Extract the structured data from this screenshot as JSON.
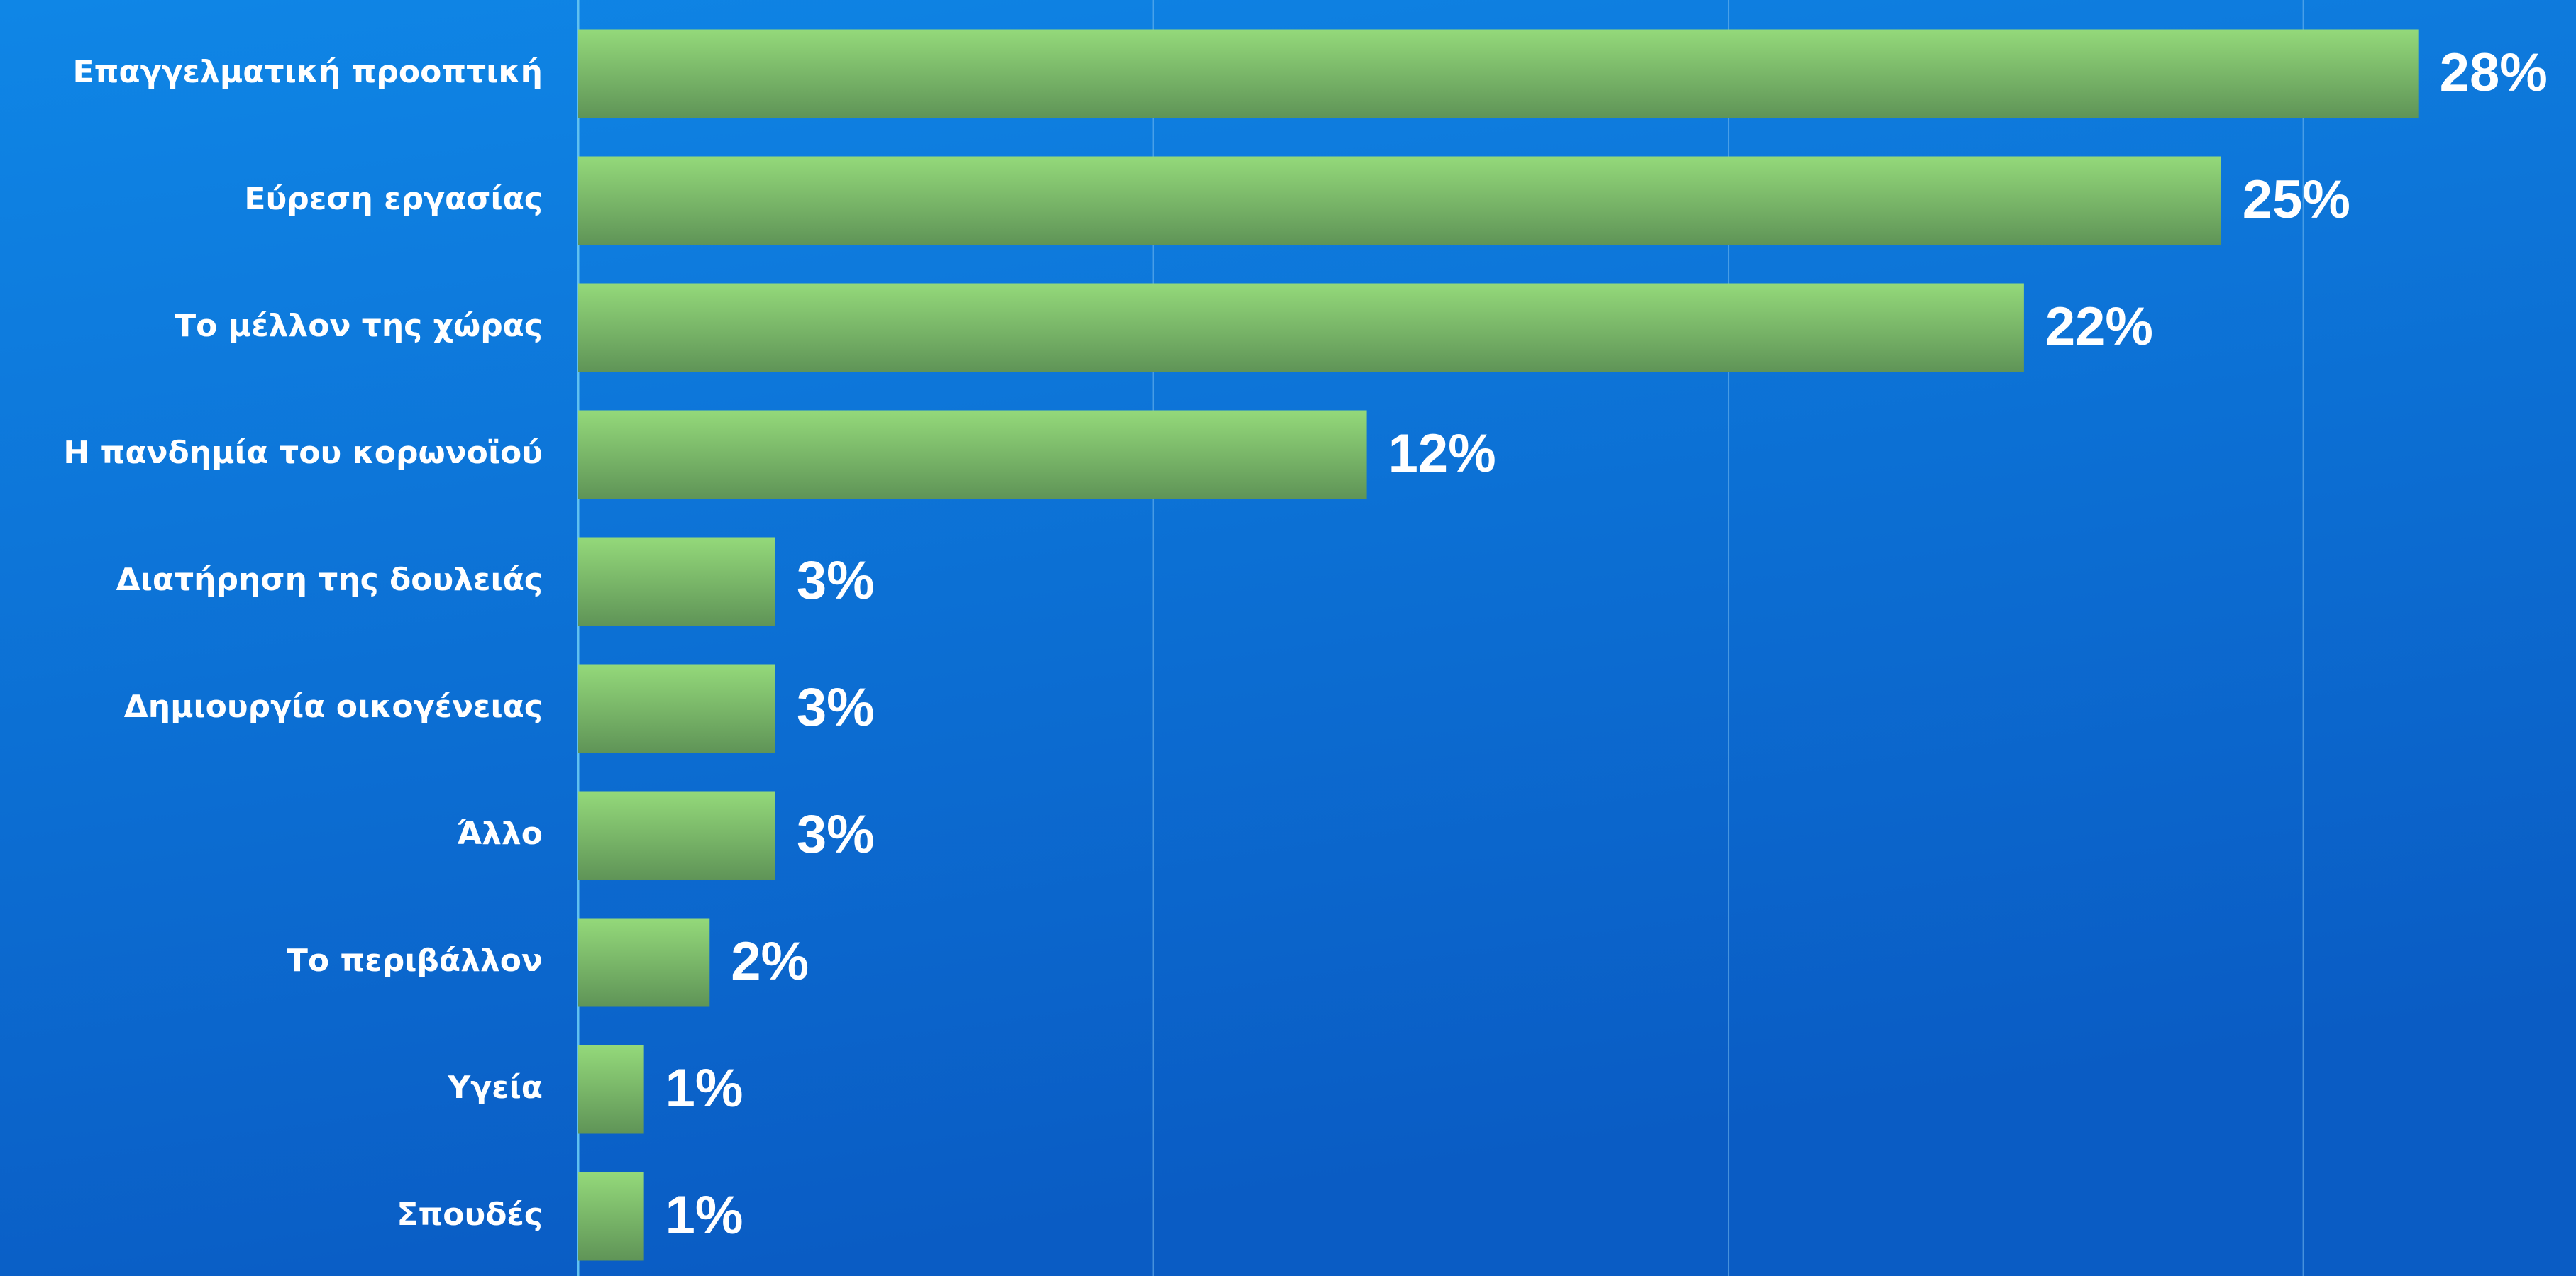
{
  "chart_data": {
    "type": "hbar",
    "categories": [
      "Επαγγελματική προοπτική",
      "Εύρεση εργασίας",
      "Το μέλλον της χώρας",
      "Η πανδημία του κορωνοϊού",
      "Διατήρηση της δουλειάς",
      "Δημιουργία οικογένειας",
      "Άλλο",
      "Το περιβάλλον",
      "Υγεία",
      "Σπουδές"
    ],
    "values": [
      28,
      25,
      22,
      12,
      3,
      3,
      3,
      2,
      1,
      1
    ],
    "value_labels": [
      "28%",
      "25%",
      "22%",
      "12%",
      "3%",
      "3%",
      "3%",
      "2%",
      "1%",
      "1%"
    ],
    "color": "#7cc36a",
    "xlim": [
      0,
      30.4
    ],
    "xticks": [
      0,
      8.75,
      17.5,
      26.25
    ],
    "grid": true
  }
}
